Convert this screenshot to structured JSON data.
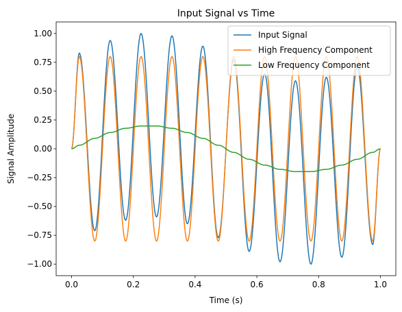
{
  "chart_data": {
    "type": "line",
    "title": "Input Signal vs Time",
    "xlabel": "Time (s)",
    "ylabel": "Signal Amplitude",
    "xlim": [
      -0.05,
      1.05
    ],
    "ylim": [
      -1.1,
      1.1
    ],
    "xticks": [
      0.0,
      0.2,
      0.4,
      0.6,
      0.8,
      1.0
    ],
    "xtick_labels": [
      "0.0",
      "0.2",
      "0.4",
      "0.6",
      "0.8",
      "1.0"
    ],
    "yticks": [
      1.0,
      0.75,
      0.5,
      0.25,
      0.0,
      -0.25,
      -0.5,
      -0.75,
      -1.0
    ],
    "ytick_labels": [
      "1.00",
      "0.75",
      "0.50",
      "0.25",
      "0.00",
      "−0.25",
      "−0.50",
      "−0.75",
      "−1.00"
    ],
    "grid": false,
    "legend": "upper right",
    "x": [
      0.0,
      0.025,
      0.075,
      0.125,
      0.175,
      0.225,
      0.275,
      0.325,
      0.375,
      0.425,
      0.475,
      0.525,
      0.575,
      0.625,
      0.675,
      0.725,
      0.775,
      0.825,
      0.875,
      0.925,
      0.975,
      1.0
    ],
    "series": [
      {
        "name": "Input Signal",
        "color": "#1f77b4",
        "values": [
          0.0,
          0.83,
          -0.71,
          0.94,
          -0.62,
          1.0,
          -0.59,
          0.98,
          -0.65,
          0.89,
          -0.77,
          0.77,
          -0.89,
          0.65,
          -0.98,
          0.59,
          -1.0,
          0.62,
          -0.94,
          0.71,
          -0.83,
          0.0
        ]
      },
      {
        "name": "High Frequency Component",
        "color": "#ff7f0e",
        "values": [
          0.0,
          0.8,
          -0.8,
          0.8,
          -0.8,
          0.8,
          -0.8,
          0.8,
          -0.8,
          0.8,
          -0.8,
          0.8,
          -0.8,
          0.8,
          -0.8,
          0.8,
          -0.8,
          0.8,
          -0.8,
          0.8,
          -0.8,
          0.0
        ]
      },
      {
        "name": "Low Frequency Component",
        "color": "#2ca02c",
        "values": [
          0.0,
          0.031,
          0.091,
          0.141,
          0.178,
          0.198,
          0.198,
          0.178,
          0.141,
          0.091,
          0.031,
          -0.031,
          -0.091,
          -0.141,
          -0.178,
          -0.198,
          -0.198,
          -0.178,
          -0.141,
          -0.091,
          -0.031,
          0.0
        ]
      }
    ]
  }
}
